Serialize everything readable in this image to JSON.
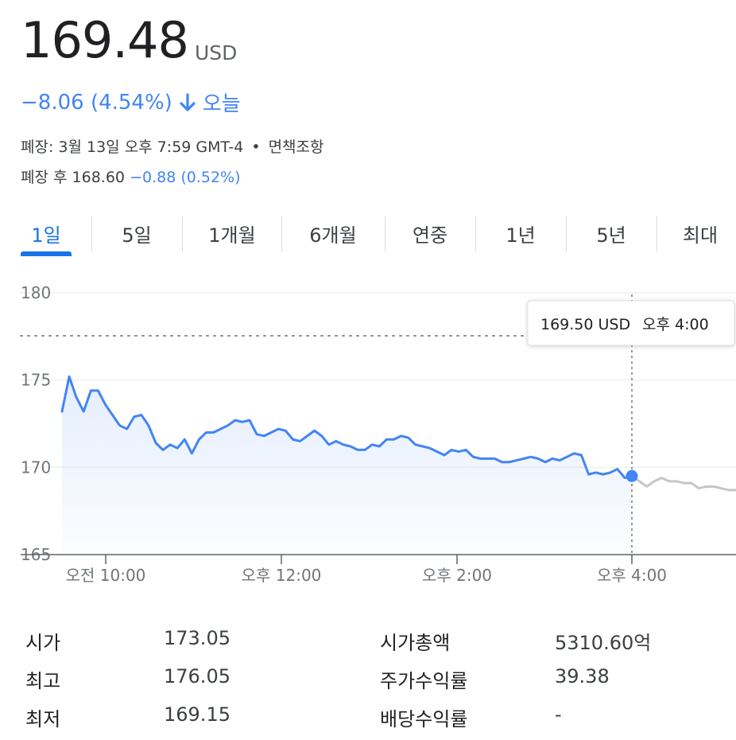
{
  "quote": {
    "price": "169.48",
    "currency": "USD",
    "change": "−8.06 (4.54%)",
    "today_label": "오늘",
    "closed_line": "폐장: 3월 13일 오후 7:59 GMT-4",
    "disclaimer": "면책조항",
    "after_hours_label": "폐장 후 168.60",
    "after_hours_change": "−0.88 (0.52%)"
  },
  "colors": {
    "accent": "#1a73e8",
    "line": "#4285f4",
    "after_line": "#c6c6c6"
  },
  "tabs": [
    {
      "label": "1일",
      "active": true
    },
    {
      "label": "5일"
    },
    {
      "label": "1개월"
    },
    {
      "label": "6개월"
    },
    {
      "label": "연중"
    },
    {
      "label": "1년"
    },
    {
      "label": "5년"
    },
    {
      "label": "최대"
    }
  ],
  "tooltip": {
    "value": "169.50 USD",
    "time": "오후 4:00"
  },
  "stats": [
    {
      "label": "시가",
      "value": "173.05"
    },
    {
      "label": "최고",
      "value": "176.05"
    },
    {
      "label": "최저",
      "value": "169.15"
    },
    {
      "label": "시가총액",
      "value": "5310.60억"
    },
    {
      "label": "주가수익률",
      "value": "39.38"
    },
    {
      "label": "배당수익률",
      "value": "-"
    }
  ],
  "chart_data": {
    "type": "line",
    "yticks": [
      "180",
      "175",
      "170",
      "165"
    ],
    "ylim": [
      165,
      180
    ],
    "xticks": [
      "오전 10:00",
      "오후 12:00",
      "오후 2:00",
      "오후 4:00"
    ],
    "previous_close": 177.54,
    "series": [
      {
        "values": [
          173.2,
          175.2,
          174.0,
          173.2,
          174.4,
          174.4,
          173.6,
          173.0,
          172.4,
          172.2,
          172.9,
          173.0,
          172.4,
          171.4,
          171.0,
          171.3,
          171.1,
          171.6,
          170.8,
          171.6,
          172.0,
          172.0,
          172.2,
          172.4,
          172.7,
          172.6,
          172.7,
          171.9,
          171.8,
          172.0,
          172.2,
          172.1,
          171.6,
          171.5,
          171.8,
          172.1,
          171.8,
          171.3,
          171.5,
          171.3,
          171.2,
          171.0,
          171.0,
          171.3,
          171.2,
          171.6,
          171.6,
          171.8,
          171.7,
          171.3,
          171.2,
          171.1,
          170.9,
          170.7,
          171.0,
          170.9,
          171.0,
          170.6,
          170.5,
          170.5,
          170.5,
          170.3,
          170.3,
          170.4,
          170.5,
          170.6,
          170.5,
          170.3,
          170.5,
          170.4,
          170.6,
          170.8,
          170.7,
          169.6,
          169.7,
          169.6,
          169.7,
          169.9,
          169.4,
          169.5
        ]
      },
      {
        "name": "after_hours",
        "values": [
          169.5,
          169.2,
          168.9,
          169.2,
          169.4,
          169.2,
          169.2,
          169.1,
          169.1,
          168.8,
          168.9,
          168.9,
          168.8,
          168.7,
          168.7
        ]
      }
    ]
  }
}
